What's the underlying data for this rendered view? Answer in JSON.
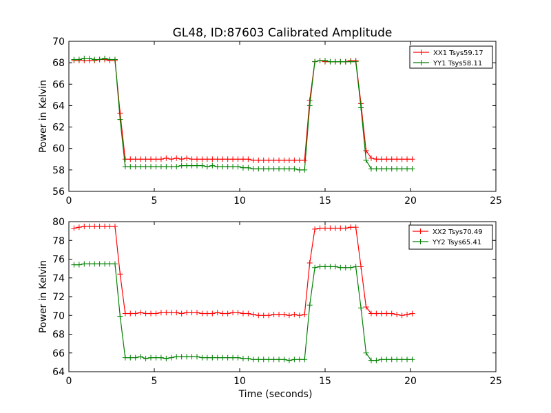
{
  "figure_title": "GL48, ID:87603 Calibrated Amplitude",
  "chart_data": [
    {
      "type": "line",
      "title": "GL48, ID:87603 Calibrated Amplitude",
      "xlabel": "",
      "ylabel": "Power in Kelvin",
      "xlim": [
        0,
        25
      ],
      "ylim": [
        56,
        70
      ],
      "xticks": [
        0,
        5,
        10,
        15,
        20,
        25
      ],
      "yticks": [
        56,
        58,
        60,
        62,
        64,
        66,
        68,
        70
      ],
      "grid": false,
      "marker": "+",
      "legend_position": "top-right",
      "series": [
        {
          "name": "XX1 Tsys59.17",
          "color": "#ff0000",
          "x": [
            0.3,
            0.6,
            0.9,
            1.2,
            1.5,
            1.8,
            2.1,
            2.4,
            2.7,
            3.0,
            3.3,
            3.6,
            3.9,
            4.2,
            4.5,
            4.8,
            5.1,
            5.4,
            5.7,
            6.0,
            6.3,
            6.6,
            6.9,
            7.2,
            7.5,
            7.8,
            8.1,
            8.4,
            8.7,
            9.0,
            9.3,
            9.6,
            9.9,
            10.2,
            10.5,
            10.8,
            11.1,
            11.4,
            11.7,
            12.0,
            12.3,
            12.6,
            12.9,
            13.2,
            13.5,
            13.8,
            14.1,
            14.4,
            14.7,
            15.0,
            15.3,
            15.6,
            15.9,
            16.2,
            16.5,
            16.8,
            17.1,
            17.4,
            17.7,
            18.0,
            18.3,
            18.6,
            18.9,
            19.2,
            19.5,
            19.8,
            20.1
          ],
          "y": [
            68.2,
            68.2,
            68.2,
            68.2,
            68.2,
            68.3,
            68.3,
            68.2,
            68.2,
            63.3,
            59.0,
            59.0,
            59.0,
            59.0,
            59.0,
            59.0,
            59.0,
            59.0,
            59.1,
            59.0,
            59.1,
            59.0,
            59.1,
            59.0,
            59.0,
            59.0,
            59.0,
            59.0,
            59.0,
            59.0,
            59.0,
            59.0,
            59.0,
            59.0,
            59.0,
            58.9,
            58.9,
            58.9,
            58.9,
            58.9,
            58.9,
            58.9,
            58.9,
            58.9,
            58.9,
            58.9,
            64.5,
            68.1,
            68.2,
            68.1,
            68.1,
            68.1,
            68.1,
            68.1,
            68.2,
            68.2,
            64.2,
            59.8,
            59.1,
            59.0,
            59.0,
            59.0,
            59.0,
            59.0,
            59.0,
            59.0,
            59.0
          ]
        },
        {
          "name": "YY1 Tsys58.11",
          "color": "#008000",
          "x": [
            0.3,
            0.6,
            0.9,
            1.2,
            1.5,
            1.8,
            2.1,
            2.4,
            2.7,
            3.0,
            3.3,
            3.6,
            3.9,
            4.2,
            4.5,
            4.8,
            5.1,
            5.4,
            5.7,
            6.0,
            6.3,
            6.6,
            6.9,
            7.2,
            7.5,
            7.8,
            8.1,
            8.4,
            8.7,
            9.0,
            9.3,
            9.6,
            9.9,
            10.2,
            10.5,
            10.8,
            11.1,
            11.4,
            11.7,
            12.0,
            12.3,
            12.6,
            12.9,
            13.2,
            13.5,
            13.8,
            14.1,
            14.4,
            14.7,
            15.0,
            15.3,
            15.6,
            15.9,
            16.2,
            16.5,
            16.8,
            17.1,
            17.4,
            17.7,
            18.0,
            18.3,
            18.6,
            18.9,
            19.2,
            19.5,
            19.8,
            20.1
          ],
          "y": [
            68.3,
            68.3,
            68.4,
            68.4,
            68.3,
            68.3,
            68.4,
            68.3,
            68.3,
            62.7,
            58.3,
            58.3,
            58.3,
            58.3,
            58.3,
            58.3,
            58.3,
            58.3,
            58.3,
            58.3,
            58.3,
            58.4,
            58.4,
            58.4,
            58.4,
            58.4,
            58.3,
            58.4,
            58.3,
            58.3,
            58.3,
            58.3,
            58.3,
            58.2,
            58.2,
            58.1,
            58.1,
            58.1,
            58.1,
            58.1,
            58.1,
            58.1,
            58.1,
            58.1,
            58.0,
            58.0,
            64.0,
            68.1,
            68.2,
            68.2,
            68.1,
            68.1,
            68.1,
            68.1,
            68.1,
            68.1,
            63.8,
            58.9,
            58.1,
            58.1,
            58.1,
            58.1,
            58.1,
            58.1,
            58.1,
            58.1,
            58.1
          ]
        }
      ]
    },
    {
      "type": "line",
      "title": "",
      "xlabel": "Time (seconds)",
      "ylabel": "Power in Kelvin",
      "xlim": [
        0,
        25
      ],
      "ylim": [
        64,
        80
      ],
      "xticks": [
        0,
        5,
        10,
        15,
        20,
        25
      ],
      "yticks": [
        64,
        66,
        68,
        70,
        72,
        74,
        76,
        78,
        80
      ],
      "grid": false,
      "marker": "+",
      "legend_position": "top-right",
      "series": [
        {
          "name": "XX2 Tsys70.49",
          "color": "#ff0000",
          "x": [
            0.3,
            0.6,
            0.9,
            1.2,
            1.5,
            1.8,
            2.1,
            2.4,
            2.7,
            3.0,
            3.3,
            3.6,
            3.9,
            4.2,
            4.5,
            4.8,
            5.1,
            5.4,
            5.7,
            6.0,
            6.3,
            6.6,
            6.9,
            7.2,
            7.5,
            7.8,
            8.1,
            8.4,
            8.7,
            9.0,
            9.3,
            9.6,
            9.9,
            10.2,
            10.5,
            10.8,
            11.1,
            11.4,
            11.7,
            12.0,
            12.3,
            12.6,
            12.9,
            13.2,
            13.5,
            13.8,
            14.1,
            14.4,
            14.7,
            15.0,
            15.3,
            15.6,
            15.9,
            16.2,
            16.5,
            16.8,
            17.1,
            17.4,
            17.7,
            18.0,
            18.3,
            18.6,
            18.9,
            19.2,
            19.5,
            19.8,
            20.1
          ],
          "y": [
            79.3,
            79.4,
            79.5,
            79.5,
            79.5,
            79.5,
            79.5,
            79.5,
            79.5,
            74.4,
            70.2,
            70.2,
            70.2,
            70.3,
            70.2,
            70.2,
            70.2,
            70.3,
            70.3,
            70.3,
            70.3,
            70.2,
            70.3,
            70.3,
            70.3,
            70.2,
            70.2,
            70.2,
            70.3,
            70.2,
            70.2,
            70.3,
            70.3,
            70.2,
            70.2,
            70.1,
            70.0,
            70.0,
            70.0,
            70.1,
            70.1,
            70.1,
            70.0,
            70.1,
            70.0,
            70.1,
            75.6,
            79.2,
            79.3,
            79.3,
            79.3,
            79.3,
            79.3,
            79.3,
            79.4,
            79.4,
            75.2,
            70.9,
            70.2,
            70.2,
            70.2,
            70.2,
            70.2,
            70.1,
            70.0,
            70.1,
            70.2
          ]
        },
        {
          "name": "YY2 Tsys65.41",
          "color": "#008000",
          "x": [
            0.3,
            0.6,
            0.9,
            1.2,
            1.5,
            1.8,
            2.1,
            2.4,
            2.7,
            3.0,
            3.3,
            3.6,
            3.9,
            4.2,
            4.5,
            4.8,
            5.1,
            5.4,
            5.7,
            6.0,
            6.3,
            6.6,
            6.9,
            7.2,
            7.5,
            7.8,
            8.1,
            8.4,
            8.7,
            9.0,
            9.3,
            9.6,
            9.9,
            10.2,
            10.5,
            10.8,
            11.1,
            11.4,
            11.7,
            12.0,
            12.3,
            12.6,
            12.9,
            13.2,
            13.5,
            13.8,
            14.1,
            14.4,
            14.7,
            15.0,
            15.3,
            15.6,
            15.9,
            16.2,
            16.5,
            16.8,
            17.1,
            17.4,
            17.7,
            18.0,
            18.3,
            18.6,
            18.9,
            19.2,
            19.5,
            19.8,
            20.1
          ],
          "y": [
            75.4,
            75.4,
            75.5,
            75.5,
            75.5,
            75.5,
            75.5,
            75.5,
            75.5,
            69.9,
            65.5,
            65.5,
            65.5,
            65.6,
            65.4,
            65.5,
            65.5,
            65.5,
            65.4,
            65.5,
            65.6,
            65.6,
            65.6,
            65.6,
            65.6,
            65.5,
            65.5,
            65.5,
            65.5,
            65.5,
            65.5,
            65.5,
            65.5,
            65.4,
            65.4,
            65.3,
            65.3,
            65.3,
            65.3,
            65.3,
            65.3,
            65.3,
            65.2,
            65.3,
            65.3,
            65.3,
            71.1,
            75.1,
            75.2,
            75.2,
            75.2,
            75.2,
            75.1,
            75.1,
            75.1,
            75.2,
            70.8,
            66.0,
            65.2,
            65.2,
            65.3,
            65.3,
            65.3,
            65.3,
            65.3,
            65.3,
            65.3
          ]
        }
      ]
    }
  ]
}
